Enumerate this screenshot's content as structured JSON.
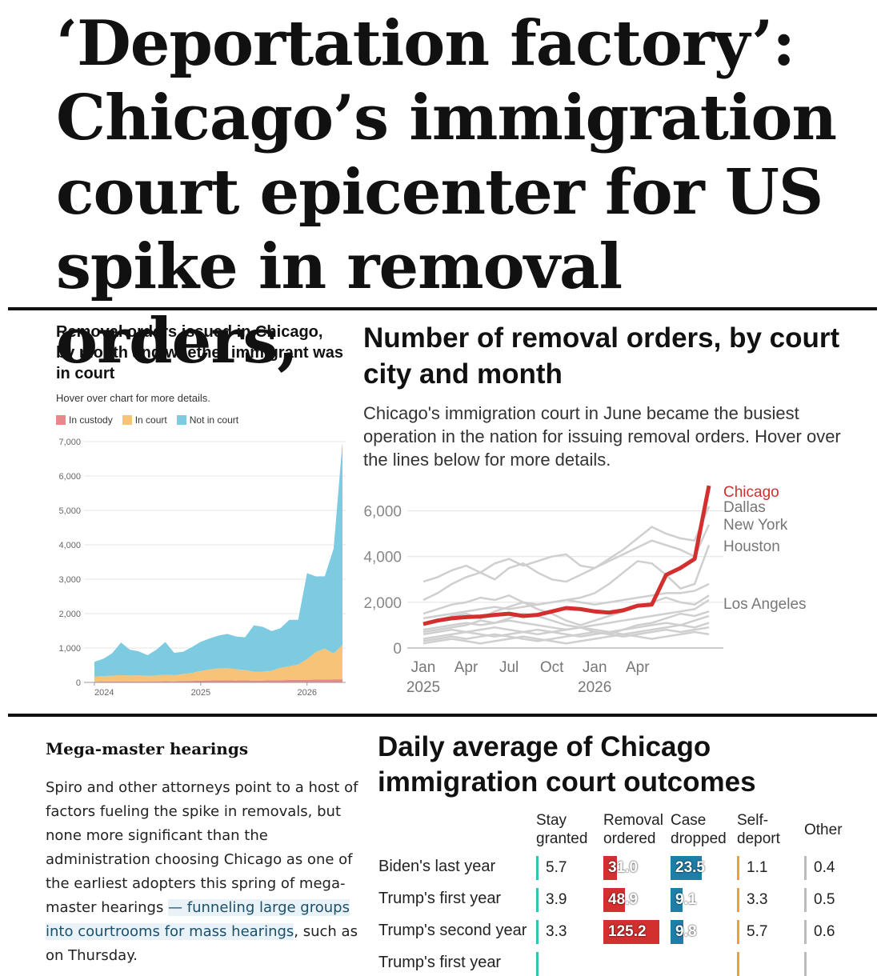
{
  "headline": "‘Deportation factory’: Chicago’s immigration court epicenter for US spike in removal orders,",
  "left_panel": {
    "title": "Removal orders issued in Chicago, by month and whether immigrant was in court",
    "subtitle": "Hover over chart for more details.",
    "legend": [
      {
        "label": "In custody",
        "color": "#e8888a"
      },
      {
        "label": "In court",
        "color": "#f7c378"
      },
      {
        "label": "Not in court",
        "color": "#7ccbe0"
      }
    ]
  },
  "right_panel": {
    "title": "Number of removal orders, by court city and month",
    "description": "Chicago's immigration court in June became the busiest operation in the nation for issuing removal orders. Hover over the lines below for more details."
  },
  "article": {
    "section_heading": "Mega-master hearings",
    "para_part1": "Spiro and other attorneys point to a host of factors fueling the spike in removals, but none more significant than the administration choosing Chicago as one of the earliest adopters this spring of mega-master hearings ",
    "para_highlight": "— funneling large groups into courtrooms for mass hearings",
    "para_part2": ", such as on Thursday."
  },
  "outcomes_table": {
    "title": "Daily average of Chicago immigration court outcomes",
    "columns": [
      "Stay granted",
      "Removal ordered",
      "Case dropped",
      "Self-deport",
      "Other"
    ],
    "column_colors": [
      "#2ec4b6",
      "#d32f2f",
      "#1f7ea8",
      "#f0a030",
      "#bbbbbb"
    ],
    "rows": [
      {
        "label": "Biden's last year",
        "values": [
          "5.7",
          "31.0",
          "23.5",
          "1.1",
          "0.4"
        ]
      },
      {
        "label": "Trump's first year",
        "values": [
          "3.9",
          "48.9",
          "9.1",
          "3.3",
          "0.5"
        ]
      },
      {
        "label": "Trump's second year",
        "values": [
          "3.3",
          "125.2",
          "9.8",
          "5.7",
          "0.6"
        ]
      },
      {
        "label": "Trump's first year",
        "values": [
          "",
          "",
          "",
          "",
          ""
        ]
      }
    ]
  },
  "chart_data": [
    {
      "type": "area",
      "title": "Removal orders issued in Chicago, by month and whether immigrant was in court",
      "x_ticks": [
        "2024",
        "2025",
        "2026"
      ],
      "y_ticks": [
        "0",
        "1,000",
        "2,000",
        "3,000",
        "4,000",
        "5,000",
        "6,000",
        "7,000"
      ],
      "ylim": [
        0,
        7000
      ],
      "x_months": 29,
      "series": [
        {
          "name": "In custody",
          "color": "#e8888a",
          "values": [
            20,
            25,
            25,
            30,
            30,
            25,
            30,
            30,
            35,
            30,
            40,
            45,
            50,
            55,
            60,
            60,
            55,
            60,
            50,
            55,
            60,
            65,
            70,
            70,
            75,
            80,
            85,
            90,
            90
          ]
        },
        {
          "name": "In court",
          "color": "#f7c378",
          "values": [
            150,
            160,
            170,
            180,
            170,
            180,
            160,
            170,
            190,
            180,
            200,
            230,
            280,
            320,
            350,
            350,
            330,
            300,
            260,
            260,
            280,
            360,
            400,
            450,
            600,
            800,
            900,
            750,
            1000
          ]
        },
        {
          "name": "Not in court",
          "color": "#7ccbe0",
          "values": [
            430,
            500,
            650,
            950,
            750,
            700,
            600,
            750,
            950,
            650,
            650,
            750,
            850,
            900,
            950,
            1000,
            950,
            950,
            1350,
            1300,
            1150,
            1150,
            1350,
            1300,
            2500,
            2200,
            2100,
            3050,
            5900
          ]
        }
      ],
      "grid": true
    },
    {
      "type": "line",
      "title": "Number of removal orders, by court city and month",
      "x_ticks": [
        "Jan 2025",
        "Apr",
        "Jul",
        "Oct",
        "Jan 2026",
        "Apr"
      ],
      "y_ticks": [
        "0",
        "2,000",
        "4,000",
        "6,000"
      ],
      "ylim": [
        0,
        7000
      ],
      "highlight": {
        "name": "Chicago",
        "color": "#d32f2f",
        "values": [
          1050,
          1200,
          1300,
          1350,
          1380,
          1450,
          1500,
          1400,
          1450,
          1600,
          1750,
          1700,
          1600,
          1550,
          1650,
          1850,
          1900,
          3200,
          3500,
          3900,
          7100
        ]
      },
      "labeled_series": [
        {
          "name": "Dallas",
          "values": [
            2100,
            2400,
            2800,
            3100,
            3300,
            3000,
            3500,
            3700,
            3300,
            3000,
            2900,
            3200,
            3500,
            3900,
            4300,
            4800,
            5300,
            5000,
            4800,
            4700,
            6200
          ]
        },
        {
          "name": "New York",
          "values": [
            2900,
            3100,
            3400,
            3600,
            3300,
            3700,
            3900,
            3600,
            3800,
            4000,
            4100,
            3600,
            3500,
            3800,
            4100,
            4400,
            4700,
            4500,
            4300,
            4000,
            5400
          ]
        },
        {
          "name": "Houston",
          "values": [
            1500,
            1700,
            1900,
            2000,
            2200,
            2100,
            2300,
            2000,
            1900,
            2000,
            2100,
            2200,
            2400,
            2800,
            3300,
            3800,
            3700,
            3200,
            2600,
            2800,
            4500
          ]
        },
        {
          "name": "Los Angeles",
          "values": [
            1300,
            1400,
            1500,
            1600,
            1700,
            1800,
            1700,
            1800,
            1900,
            2000,
            2100,
            2000,
            1900,
            2000,
            2100,
            2200,
            2300,
            2400,
            2400,
            2500,
            2800
          ]
        }
      ],
      "other_series": [
        [
          800,
          900,
          1000,
          1100,
          1000,
          1100,
          1200,
          1100,
          1000,
          900,
          800,
          900,
          1000,
          1100,
          1200,
          1300,
          1400,
          1500,
          1600,
          1700,
          2100
        ],
        [
          600,
          700,
          800,
          700,
          800,
          900,
          800,
          700,
          600,
          700,
          800,
          900,
          800,
          700,
          800,
          900,
          1000,
          1100,
          1000,
          1200,
          1400
        ],
        [
          400,
          500,
          600,
          700,
          600,
          500,
          600,
          700,
          800,
          700,
          600,
          500,
          600,
          700,
          600,
          700,
          800,
          900,
          1000,
          900,
          1100
        ],
        [
          300,
          400,
          500,
          400,
          500,
          600,
          500,
          400,
          300,
          400,
          500,
          600,
          700,
          600,
          500,
          600,
          700,
          800,
          700,
          800,
          900
        ],
        [
          200,
          300,
          400,
          300,
          200,
          300,
          400,
          500,
          400,
          300,
          200,
          300,
          400,
          500,
          600,
          500,
          400,
          500,
          600,
          700,
          600
        ],
        [
          1000,
          1200,
          1400,
          1500,
          1300,
          1600,
          1800,
          2000,
          1700,
          1500,
          1200,
          1000,
          1200,
          1400,
          1600,
          1800,
          2000,
          2200,
          2000,
          1900,
          2300
        ],
        [
          700,
          800,
          900,
          1000,
          1200,
          1100,
          1300,
          1500,
          1400,
          1200,
          1000,
          900,
          700,
          600,
          800,
          1000,
          1100,
          1300,
          1500,
          1400,
          1600
        ]
      ],
      "grid": true
    }
  ]
}
